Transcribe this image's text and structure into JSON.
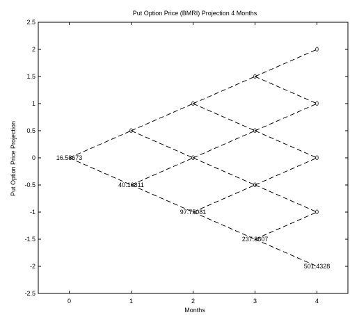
{
  "chart_data": {
    "type": "line",
    "title": "Put Option Price (BMRI) Projection 4 Months",
    "xlabel": "Months",
    "ylabel": "Put Option Price Projection",
    "xlim": [
      -0.5,
      4.5
    ],
    "ylim": [
      -2.5,
      2.5
    ],
    "xticks": [
      0,
      1,
      2,
      3,
      4
    ],
    "yticks": [
      -2.5,
      -2,
      -1.5,
      -1,
      -0.5,
      0,
      0.5,
      1,
      1.5,
      2,
      2.5
    ],
    "line_style": "dashed",
    "line_color": "#000000",
    "grid": false,
    "legend": "none",
    "nodes": [
      {
        "x": 0,
        "y": 0,
        "label": "16.58673"
      },
      {
        "x": 1,
        "y": 0.5,
        "label": "0"
      },
      {
        "x": 1,
        "y": -0.5,
        "label": "40.16811"
      },
      {
        "x": 2,
        "y": 1,
        "label": "0"
      },
      {
        "x": 2,
        "y": 0,
        "label": "0"
      },
      {
        "x": 2,
        "y": -1,
        "label": "97.75081"
      },
      {
        "x": 3,
        "y": 1.5,
        "label": "0"
      },
      {
        "x": 3,
        "y": 0.5,
        "label": "0"
      },
      {
        "x": 3,
        "y": -0.5,
        "label": "0"
      },
      {
        "x": 3,
        "y": -1.5,
        "label": "237.8807"
      },
      {
        "x": 4,
        "y": 2,
        "label": "0"
      },
      {
        "x": 4,
        "y": 1,
        "label": "0"
      },
      {
        "x": 4,
        "y": 0,
        "label": "0"
      },
      {
        "x": 4,
        "y": -1,
        "label": "0"
      },
      {
        "x": 4,
        "y": -2,
        "label": "501.4328"
      }
    ],
    "edges": [
      [
        [
          0,
          0
        ],
        [
          1,
          0.5
        ]
      ],
      [
        [
          0,
          0
        ],
        [
          1,
          -0.5
        ]
      ],
      [
        [
          1,
          0.5
        ],
        [
          2,
          1
        ]
      ],
      [
        [
          1,
          0.5
        ],
        [
          2,
          0
        ]
      ],
      [
        [
          1,
          -0.5
        ],
        [
          2,
          0
        ]
      ],
      [
        [
          1,
          -0.5
        ],
        [
          2,
          -1
        ]
      ],
      [
        [
          2,
          1
        ],
        [
          3,
          1.5
        ]
      ],
      [
        [
          2,
          1
        ],
        [
          3,
          0.5
        ]
      ],
      [
        [
          2,
          0
        ],
        [
          3,
          0.5
        ]
      ],
      [
        [
          2,
          0
        ],
        [
          3,
          -0.5
        ]
      ],
      [
        [
          2,
          -1
        ],
        [
          3,
          -0.5
        ]
      ],
      [
        [
          2,
          -1
        ],
        [
          3,
          -1.5
        ]
      ],
      [
        [
          3,
          1.5
        ],
        [
          4,
          2
        ]
      ],
      [
        [
          3,
          1.5
        ],
        [
          4,
          1
        ]
      ],
      [
        [
          3,
          0.5
        ],
        [
          4,
          1
        ]
      ],
      [
        [
          3,
          0.5
        ],
        [
          4,
          0
        ]
      ],
      [
        [
          3,
          -0.5
        ],
        [
          4,
          0
        ]
      ],
      [
        [
          3,
          -0.5
        ],
        [
          4,
          -1
        ]
      ],
      [
        [
          3,
          -1.5
        ],
        [
          4,
          -1
        ]
      ],
      [
        [
          3,
          -1.5
        ],
        [
          4,
          -2
        ]
      ]
    ]
  }
}
